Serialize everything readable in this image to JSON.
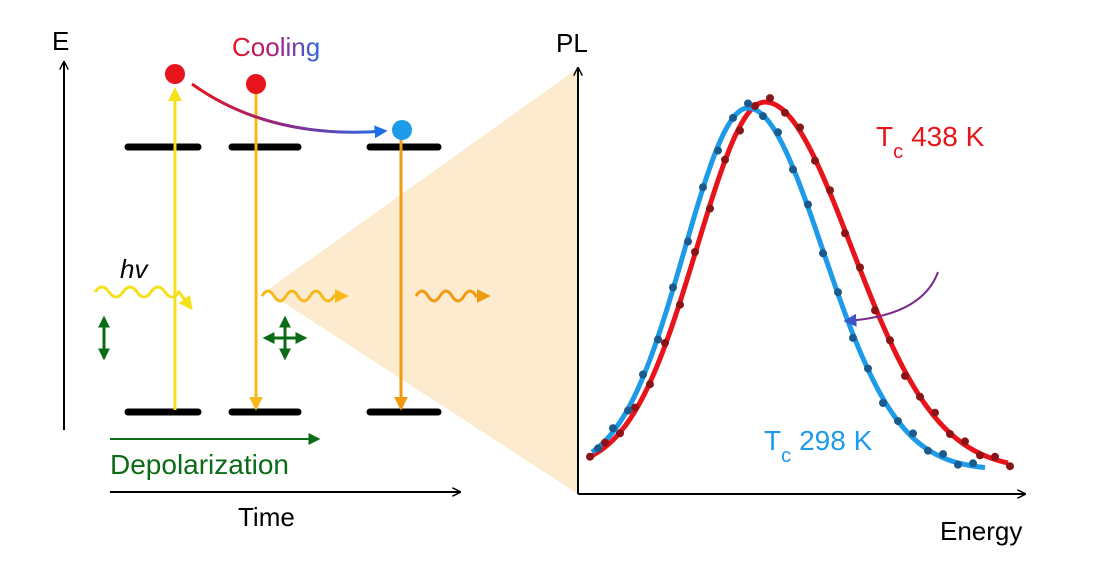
{
  "left_diagram": {
    "axis_labels": {
      "energy": "E",
      "time": "Time"
    },
    "cooling_label": "Cooling",
    "photon_label": "hv",
    "depolarization_label": "Depolarization"
  },
  "pl_plot": {
    "axis_labels": {
      "y": "PL",
      "x": "Energy"
    },
    "curves": [
      {
        "name": "T_c 438 K",
        "label_main": "T",
        "label_sub": "c",
        "label_value": "438 K",
        "color": "#e8141b"
      },
      {
        "name": "T_c 298 K",
        "label_main": "T",
        "label_sub": "c",
        "label_value": "298 K",
        "color": "#1e9be8"
      }
    ]
  },
  "colors": {
    "hot_red": "#e8141b",
    "cool_blue": "#1e9be8",
    "yellow": "#f5e11a",
    "orange_yellow": "#f7b81a",
    "orange": "#f29a12",
    "green": "#0c6b16",
    "fan": "#fcebcf",
    "arrow_purple": "#7a2a8a"
  },
  "chart_data": {
    "type": "line",
    "title": "",
    "xlabel": "Energy",
    "ylabel": "PL",
    "series": [
      {
        "name": "T_c 438 K",
        "kind": "fit+data",
        "peak_relative_x": 0.42
      },
      {
        "name": "T_c 298 K",
        "kind": "fit+data",
        "peak_relative_x": 0.4
      }
    ]
  }
}
